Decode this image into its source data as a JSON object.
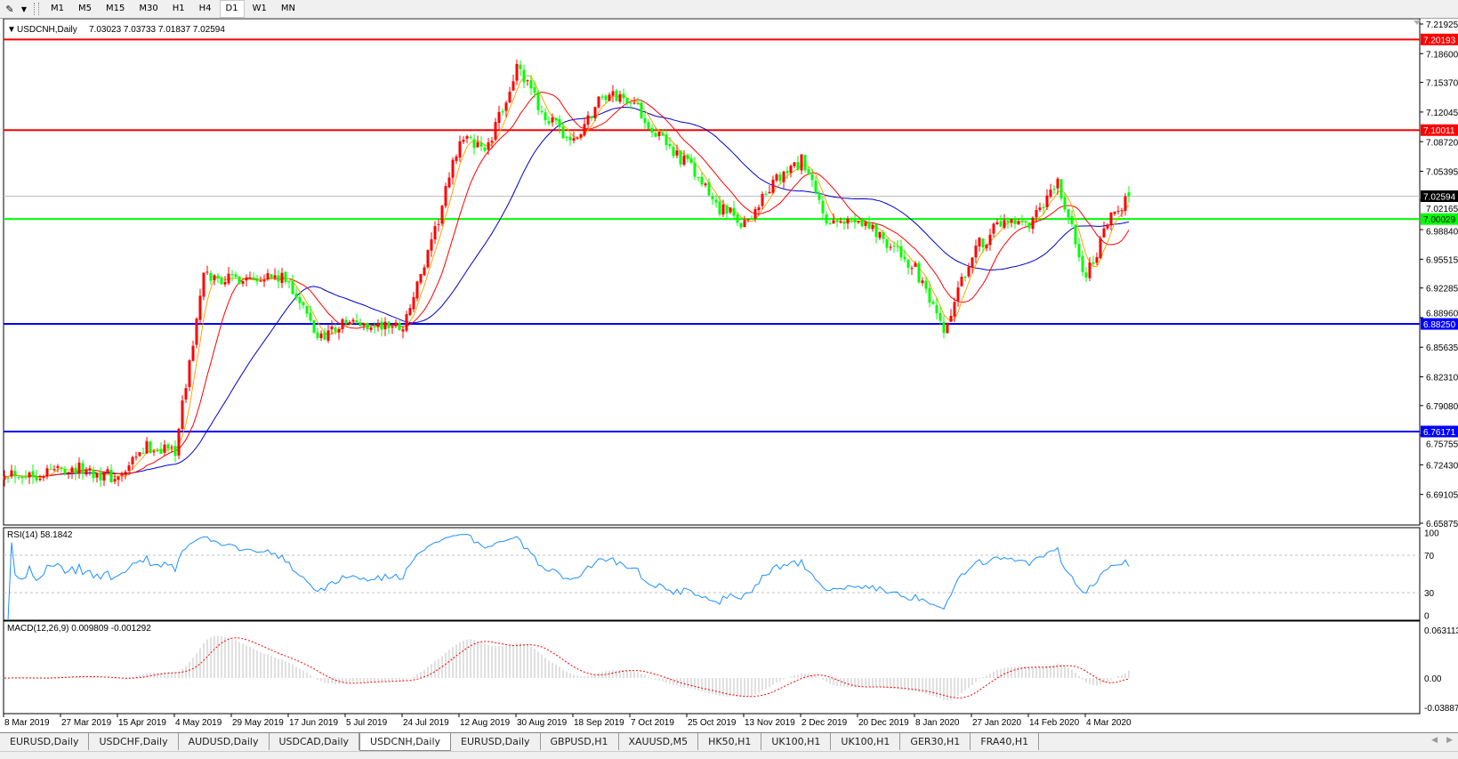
{
  "toolbar": {
    "icon": "line-tools-icon",
    "timeframes": [
      {
        "label": "M1",
        "active": false
      },
      {
        "label": "M5",
        "active": false
      },
      {
        "label": "M15",
        "active": false
      },
      {
        "label": "M30",
        "active": false
      },
      {
        "label": "H1",
        "active": false
      },
      {
        "label": "H4",
        "active": false
      },
      {
        "label": "D1",
        "active": true
      },
      {
        "label": "W1",
        "active": false
      },
      {
        "label": "MN",
        "active": false
      }
    ]
  },
  "chart": {
    "title": "USDCNH,Daily",
    "ohlc": "7.03023 7.03733 7.01837 7.02594",
    "rsi_label": "RSI(14) 58.1842",
    "macd_label": "MACD(12,26,9) 0.009809 -0.001292",
    "colors": {
      "bull": "#ff0000",
      "bear": "#00ff00",
      "ma_fast": "#ffa500",
      "ma_mid": "#ff0000",
      "ma_slow": "#0000cd",
      "rsi": "#1e90ff",
      "macd_hist": "#c0c0c0",
      "macd_signal": "#ff0000"
    }
  },
  "chart_data": {
    "type": "candlestick",
    "symbol": "USDCNH",
    "timeframe": "Daily",
    "last_bar": {
      "open": 7.03023,
      "high": 7.03733,
      "low": 7.01837,
      "close": 7.02594
    },
    "approx_closes_every_8_bars": [
      6.718,
      6.713,
      6.721,
      6.718,
      6.708,
      6.744,
      6.742,
      6.935,
      6.933,
      6.938,
      6.93,
      6.868,
      6.884,
      6.88,
      6.88,
      6.97,
      7.09,
      7.08,
      7.17,
      7.115,
      7.085,
      7.14,
      7.135,
      7.092,
      7.062,
      7.016,
      6.995,
      7.04,
      7.065,
      6.99,
      7.003,
      6.975,
      6.943,
      6.87,
      6.964,
      6.995,
      6.99,
      7.04,
      6.935,
      7.01,
      7.02594
    ],
    "price_ticks": [
      "7.21925",
      "7.18600",
      "7.15370",
      "7.12045",
      "7.08720",
      "7.05395",
      "7.02165",
      "6.98840",
      "6.95515",
      "6.92285",
      "6.88960",
      "6.85635",
      "6.82310",
      "6.79080",
      "6.75755",
      "6.72430",
      "6.69105",
      "6.65875"
    ],
    "price_range": [
      6.65875,
      7.21925
    ],
    "levels": [
      {
        "price": "7.20193",
        "color": "#ff0000",
        "text_color": "#ffffff"
      },
      {
        "price": "7.10011",
        "color": "#ff0000",
        "text_color": "#ffffff"
      },
      {
        "price": "7.00029",
        "color": "#00ff00",
        "text_color": "#000000"
      },
      {
        "price": "6.88250",
        "color": "#0000ff",
        "text_color": "#ffffff"
      },
      {
        "price": "6.76171",
        "color": "#0000ff",
        "text_color": "#ffffff"
      }
    ],
    "bid": {
      "price": "7.02594",
      "color": "#000000",
      "line_color": "#c0c0c0"
    },
    "rsi": {
      "period": 14,
      "value": 58.1842,
      "levels": [
        70,
        30
      ],
      "ticks": [
        "100",
        "70",
        "30",
        "0"
      ]
    },
    "macd": {
      "fast": 12,
      "slow": 26,
      "signal": 9,
      "main": 0.009809,
      "signal_value": -0.001292,
      "ticks": [
        "0.063113",
        "0.00",
        "-0.038872"
      ],
      "range": [
        -0.038872,
        0.063113
      ]
    },
    "x_labels": [
      "8 Mar 2019",
      "27 Mar 2019",
      "15 Apr 2019",
      "4 May 2019",
      "29 May 2019",
      "17 Jun 2019",
      "5 Jul 2019",
      "24 Jul 2019",
      "12 Aug 2019",
      "30 Aug 2019",
      "18 Sep 2019",
      "7 Oct 2019",
      "25 Oct 2019",
      "13 Nov 2019",
      "2 Dec 2019",
      "20 Dec 2019",
      "8 Jan 2020",
      "27 Jan 2020",
      "14 Feb 2020",
      "4 Mar 2020"
    ]
  },
  "tabs": [
    {
      "label": "EURUSD,Daily",
      "active": false
    },
    {
      "label": "USDCHF,Daily",
      "active": false
    },
    {
      "label": "AUDUSD,Daily",
      "active": false
    },
    {
      "label": "USDCAD,Daily",
      "active": false
    },
    {
      "label": "USDCNH,Daily",
      "active": true
    },
    {
      "label": "EURUSD,Daily",
      "active": false
    },
    {
      "label": "GBPUSD,H1",
      "active": false
    },
    {
      "label": "XAUUSD,M5",
      "active": false
    },
    {
      "label": "HK50,H1",
      "active": false
    },
    {
      "label": "UK100,H1",
      "active": false
    },
    {
      "label": "UK100,H1",
      "active": false
    },
    {
      "label": "GER30,H1",
      "active": false
    },
    {
      "label": "FRA40,H1",
      "active": false
    }
  ]
}
